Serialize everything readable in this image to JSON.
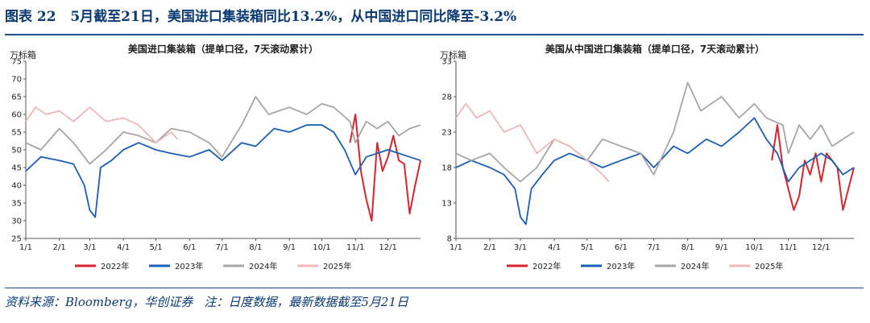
{
  "figure": {
    "label": "图表 22",
    "title": "5月截至21日，美国进口集装箱同比13.2%，从中国进口同比降至-3.2%"
  },
  "source": {
    "text": "资料来源：Bloomberg，华创证券",
    "note": "注：日度数据，最新数据截至5月21日"
  },
  "chart_data": [
    {
      "type": "line",
      "title": "美国进口集装箱（提单口径，7天滚动累计）",
      "unit_label": "万标箱",
      "ylim": [
        25,
        75
      ],
      "yticks": [
        25,
        30,
        35,
        40,
        45,
        50,
        55,
        60,
        65,
        70,
        75
      ],
      "x_ticks": [
        "1/1",
        "2/1",
        "3/1",
        "4/1",
        "5/1",
        "6/1",
        "7/1",
        "8/1",
        "9/1",
        "10/1",
        "11/1",
        "12/1"
      ],
      "x_tick_days": [
        1,
        32,
        60,
        91,
        121,
        152,
        182,
        213,
        244,
        274,
        305,
        335
      ],
      "xlim": [
        1,
        365
      ],
      "grid": false,
      "legend_position": "bottom",
      "series": [
        {
          "name": "2022年",
          "color": "#d9232e",
          "days": [
            300,
            305,
            310,
            315,
            320,
            325,
            330,
            335,
            340,
            345,
            350,
            355,
            360,
            365
          ],
          "values": [
            52,
            60,
            44,
            36,
            30,
            52,
            44,
            48,
            54,
            47,
            46,
            32,
            40,
            47
          ]
        },
        {
          "name": "2023年",
          "color": "#1a5fb4",
          "days": [
            1,
            15,
            32,
            45,
            55,
            60,
            65,
            70,
            80,
            91,
            105,
            121,
            135,
            152,
            170,
            182,
            200,
            213,
            230,
            244,
            260,
            274,
            285,
            295,
            305,
            315,
            325,
            335,
            345,
            355,
            365
          ],
          "values": [
            44,
            48,
            47,
            46,
            40,
            33,
            31,
            45,
            47,
            50,
            52,
            50,
            49,
            48,
            50,
            47,
            52,
            51,
            56,
            55,
            57,
            57,
            55,
            50,
            43,
            48,
            49,
            50,
            49,
            48,
            47
          ]
        },
        {
          "name": "2024年",
          "color": "#a6a6a6",
          "days": [
            1,
            15,
            32,
            45,
            60,
            75,
            91,
            105,
            121,
            135,
            152,
            170,
            182,
            200,
            213,
            225,
            244,
            260,
            274,
            285,
            300,
            305,
            315,
            325,
            335,
            345,
            355,
            365
          ],
          "values": [
            52,
            50,
            56,
            52,
            46,
            50,
            55,
            54,
            52,
            56,
            55,
            52,
            48,
            57,
            65,
            60,
            62,
            60,
            63,
            62,
            58,
            52,
            58,
            56,
            58,
            54,
            56,
            57
          ]
        },
        {
          "name": "2025年",
          "color": "#f0b7b7",
          "days": [
            1,
            10,
            20,
            32,
            45,
            60,
            75,
            91,
            105,
            121,
            135,
            141
          ],
          "values": [
            58,
            62,
            60,
            61,
            58,
            62,
            58,
            59,
            57,
            52,
            55,
            53
          ]
        }
      ]
    },
    {
      "type": "line",
      "title": "美国从中国进口集装箱（提单口径，7天滚动累计）",
      "unit_label": "万标箱",
      "ylim": [
        8,
        33
      ],
      "yticks": [
        8,
        13,
        18,
        23,
        28,
        33
      ],
      "x_ticks": [
        "1/1",
        "2/1",
        "3/1",
        "4/1",
        "5/1",
        "6/1",
        "7/1",
        "8/1",
        "9/1",
        "10/1",
        "11/1",
        "12/1"
      ],
      "x_tick_days": [
        1,
        32,
        60,
        91,
        121,
        152,
        182,
        213,
        244,
        274,
        305,
        335
      ],
      "xlim": [
        1,
        365
      ],
      "grid": false,
      "legend_position": "bottom",
      "series": [
        {
          "name": "2022年",
          "color": "#d9232e",
          "days": [
            290,
            295,
            300,
            305,
            310,
            315,
            320,
            325,
            330,
            335,
            340,
            345,
            350,
            355,
            360,
            365
          ],
          "values": [
            19,
            24,
            18,
            15,
            12,
            14,
            19,
            17,
            20,
            16,
            20,
            19,
            18,
            12,
            15,
            18
          ]
        },
        {
          "name": "2023年",
          "color": "#1a5fb4",
          "days": [
            1,
            15,
            32,
            45,
            55,
            60,
            65,
            70,
            80,
            91,
            105,
            121,
            135,
            152,
            170,
            182,
            200,
            213,
            230,
            244,
            260,
            274,
            285,
            295,
            305,
            315,
            325,
            335,
            345,
            355,
            365
          ],
          "values": [
            18,
            19,
            18,
            17,
            15,
            11,
            10,
            15,
            17,
            19,
            20,
            19,
            18,
            19,
            20,
            18,
            21,
            20,
            22,
            21,
            23,
            25,
            22,
            20,
            16,
            18,
            19,
            20,
            19,
            17,
            18
          ]
        },
        {
          "name": "2024年",
          "color": "#a6a6a6",
          "days": [
            1,
            15,
            32,
            45,
            60,
            75,
            91,
            105,
            121,
            135,
            152,
            170,
            182,
            200,
            213,
            225,
            244,
            260,
            274,
            285,
            300,
            305,
            315,
            325,
            335,
            345,
            355,
            365
          ],
          "values": [
            20,
            19,
            20,
            18,
            16,
            18,
            22,
            21,
            19,
            22,
            21,
            20,
            17,
            23,
            30,
            26,
            28,
            25,
            27,
            25,
            24,
            20,
            24,
            22,
            24,
            21,
            22,
            23
          ]
        },
        {
          "name": "2025年",
          "color": "#f0b7b7",
          "days": [
            1,
            10,
            20,
            32,
            45,
            60,
            75,
            91,
            105,
            121,
            135,
            141
          ],
          "values": [
            25,
            27,
            25,
            26,
            23,
            24,
            20,
            22,
            21,
            19,
            17,
            16
          ]
        }
      ]
    }
  ]
}
